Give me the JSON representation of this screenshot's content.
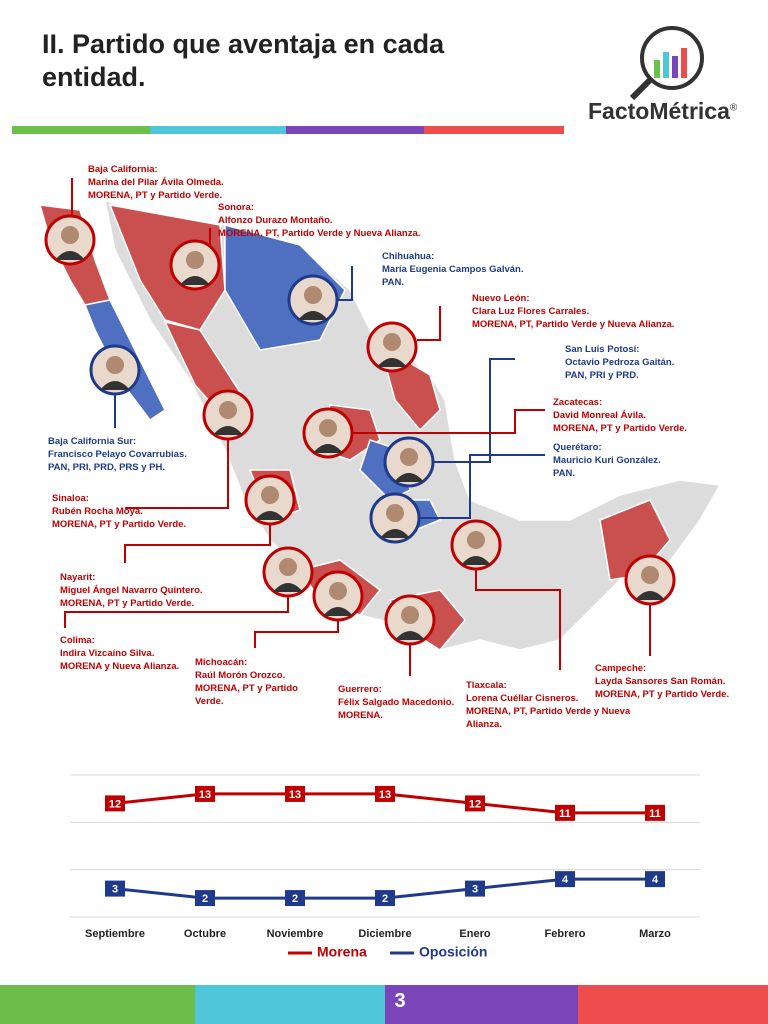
{
  "header": {
    "title": "II. Partido que aventaja en cada entidad."
  },
  "logo": {
    "name": "FactoMétrica",
    "mark": "®"
  },
  "governors": [
    {
      "state": "Baja California:",
      "name": "Marina del Pilar Ávila Olmeda.",
      "parties": "MORENA, PT y Partido Verde.",
      "color": "#c00000"
    },
    {
      "state": "Sonora:",
      "name": "Alfonzo Durazo Montaño.",
      "parties": "MORENA, PT, Partido Verde y Nueva Alianza.",
      "color": "#c00000"
    },
    {
      "state": "Chihuahua:",
      "name": "María Eugenia Campos Galván.",
      "parties": "PAN.",
      "color": "#1f3a8a"
    },
    {
      "state": "Nuevo León:",
      "name": "Clara Luz Flores Carrales.",
      "parties": "MORENA, PT, Partido Verde y Nueva Alianza.",
      "color": "#c00000"
    },
    {
      "state": "San Luis Potosí:",
      "name": "Octavio Pedroza Gaitán.",
      "parties": "PAN, PRI y PRD.",
      "color": "#1f3a8a"
    },
    {
      "state": "Zacatecas:",
      "name": "David Monreal Ávila.",
      "parties": "MORENA, PT y Partido Verde.",
      "color": "#c00000"
    },
    {
      "state": "Querétaro:",
      "name": "Mauricio Kuri González.",
      "parties": "PAN.",
      "color": "#1f3a8a"
    },
    {
      "state": "Baja California Sur:",
      "name": "Francisco Pelayo Covarrubias.",
      "parties": "PAN, PRI, PRD, PRS y PH.",
      "color": "#1f3a8a"
    },
    {
      "state": "Sinaloa:",
      "name": "Rubén Rocha Moya.",
      "parties": "MORENA, PT y Partido Verde.",
      "color": "#c00000"
    },
    {
      "state": "Nayarit:",
      "name": "Miguel Ángel Navarro Quintero.",
      "parties": "MORENA, PT y Partido Verde.",
      "color": "#c00000"
    },
    {
      "state": "Colima:",
      "name": "Indira Vizcaíno Silva.",
      "parties": "MORENA y Nueva Alianza.",
      "color": "#c00000"
    },
    {
      "state": "Michoacán:",
      "name": "Raúl Morón Orozco.",
      "parties": "MORENA, PT y Partido Verde.",
      "color": "#c00000"
    },
    {
      "state": "Guerrero:",
      "name": "Félix Salgado Macedonio.",
      "parties": "MORENA.",
      "color": "#c00000"
    },
    {
      "state": "Tlaxcala:",
      "name": "Lorena Cuéllar Cisneros.",
      "parties": "MORENA, PT, Partido Verde y Nueva Alianza.",
      "color": "#c00000"
    },
    {
      "state": "Campeche:",
      "name": "Layda Sansores San Román.",
      "parties": "MORENA, PT y Partido Verde.",
      "color": "#c00000"
    }
  ],
  "chart_data": {
    "type": "line",
    "categories": [
      "Septiembre",
      "Octubre",
      "Noviembre",
      "Diciembre",
      "Enero",
      "Febrero",
      "Marzo"
    ],
    "series": [
      {
        "name": "Morena",
        "color": "#c00000",
        "values": [
          12,
          13,
          13,
          13,
          12,
          11,
          11
        ]
      },
      {
        "name": "Oposición",
        "color": "#1f3a8a",
        "values": [
          3,
          2,
          2,
          2,
          3,
          4,
          4
        ]
      }
    ],
    "ylim": [
      0,
      15
    ],
    "yticks": [
      0,
      5,
      10,
      15
    ],
    "grid": true
  },
  "footer": {
    "page": "3"
  }
}
